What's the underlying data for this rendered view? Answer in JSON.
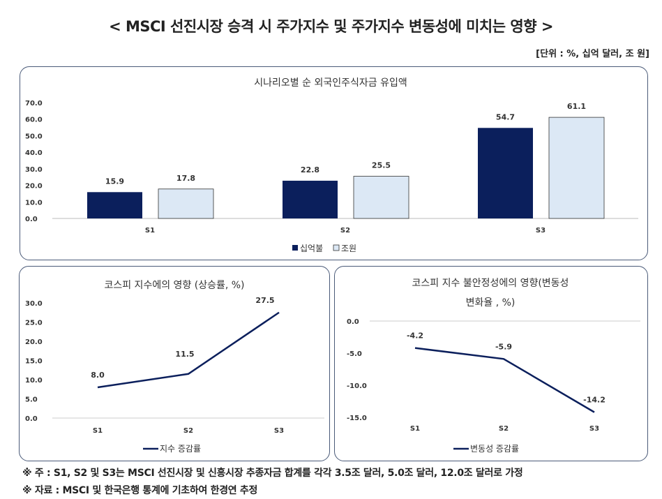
{
  "title": "< MSCI 선진시장 승격 시 주가지수 및 주가지수 변동성에 미치는 영향 >",
  "unit": "[단위 : %, 십억 달러, 조 원]",
  "colors": {
    "dark": "#0b1f5c",
    "light": "#dce8f5",
    "line": "#0b1f5c",
    "border": "#4a5a78"
  },
  "chart_data": [
    {
      "type": "bar",
      "title": "시나리오별 순 외국인주식자금 유입액",
      "categories": [
        "S1",
        "S2",
        "S3"
      ],
      "series": [
        {
          "name": "십억불",
          "values": [
            15.9,
            22.8,
            54.7
          ]
        },
        {
          "name": "조원",
          "values": [
            17.8,
            25.5,
            61.1
          ]
        }
      ],
      "ylim": [
        0,
        70
      ],
      "yticks": [
        "0.0",
        "10.0",
        "20.0",
        "30.0",
        "40.0",
        "50.0",
        "60.0",
        "70.0"
      ],
      "legend": "bottom",
      "grid": false
    },
    {
      "type": "line",
      "title": "코스피 지수에의 영향 (상승률, %)",
      "categories": [
        "S1",
        "S2",
        "S3"
      ],
      "series": [
        {
          "name": "지수 증감률",
          "values": [
            8.0,
            11.5,
            27.5
          ]
        }
      ],
      "ylim": [
        0,
        30
      ],
      "yticks": [
        "0.0",
        "5.0",
        "10.0",
        "15.0",
        "20.0",
        "25.0",
        "30.0"
      ],
      "legend": "bottom",
      "grid": false
    },
    {
      "type": "line",
      "title": "코스피 지수 불안정성에의 영향(변동성",
      "title_line2": "변화율 , %)",
      "categories": [
        "S1",
        "S2",
        "S3"
      ],
      "series": [
        {
          "name": "변동성 증감률",
          "values": [
            -4.2,
            -5.9,
            -14.2
          ]
        }
      ],
      "ylim": [
        -15,
        0
      ],
      "yticks": [
        "-15.0",
        "-10.0",
        "-5.0",
        "0.0"
      ],
      "legend": "bottom",
      "grid": false
    }
  ],
  "notes": [
    "※ 주 : S1, S2 및 S3는 MSCI 선진시장 및 신흥시장 추종자금 합계를 각각 3.5조 달러, 5.0조 달러, 12.0조 달러로 가정",
    "※ 자료 : MSCI 및 한국은행 통계에 기초하여 한경연 추정"
  ]
}
